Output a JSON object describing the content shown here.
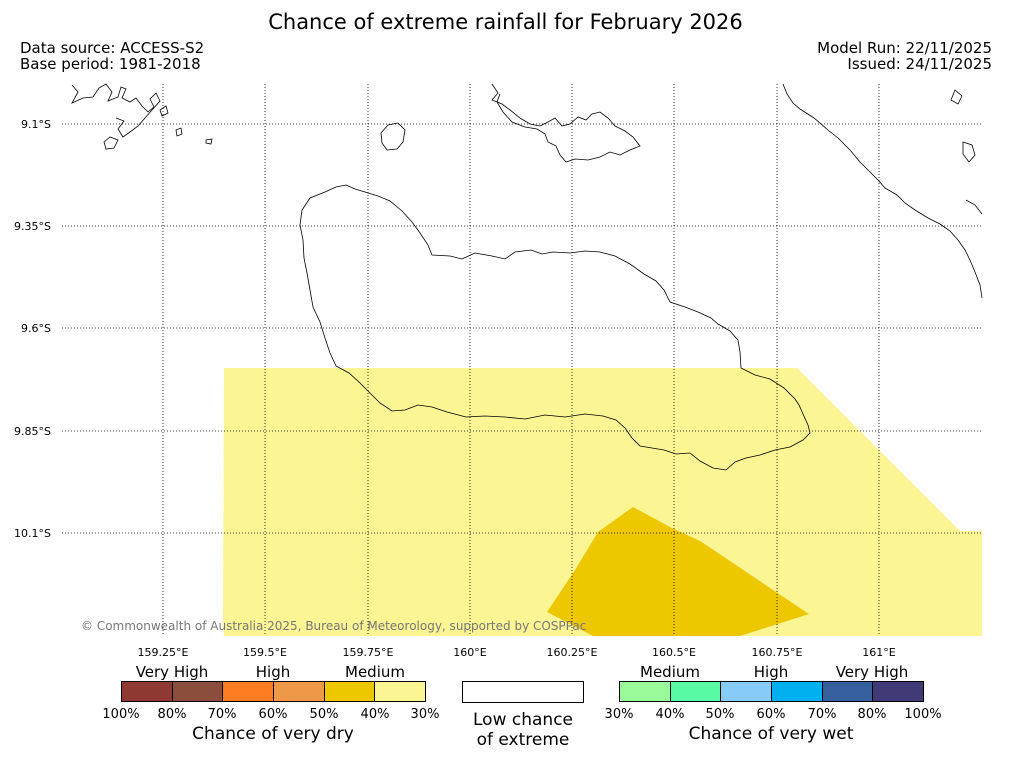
{
  "title": "Chance of extreme rainfall for February 2026",
  "header": {
    "data_source": "Data source: ACCESS-S2",
    "base_period": "Base period: 1981-2018",
    "model_run": "Model Run: 22/11/2025",
    "issued": "Issued: 24/11/2025"
  },
  "map": {
    "lat_labels": [
      "9.1°S",
      "9.35°S",
      "9.6°S",
      "9.85°S",
      "10.1°S"
    ],
    "lon_labels": [
      "159.25°E",
      "159.5°E",
      "159.75°E",
      "160°E",
      "160.25°E",
      "160.5°E",
      "160.75°E",
      "161°E"
    ],
    "copyright": "© Commonwealth of Australia 2025, Bureau of Meteorology, supported by COSPPac",
    "fill_colors": {
      "medium_dry": "#fbf594",
      "high_dry": "#edc700"
    }
  },
  "legend": {
    "dry": {
      "headings": [
        "Very High",
        "High",
        "Medium"
      ],
      "ticks": [
        "100%",
        "80%",
        "70%",
        "60%",
        "50%",
        "40%",
        "30%"
      ],
      "colors": [
        "#8e3a33",
        "#8b4d3c",
        "#fd7d22",
        "#ee9947",
        "#edc700",
        "#fbf594"
      ],
      "title": "Chance of very dry"
    },
    "low": {
      "line1": "Low chance",
      "line2": "of extreme"
    },
    "wet": {
      "headings": [
        "Medium",
        "High",
        "Very High"
      ],
      "ticks": [
        "30%",
        "40%",
        "50%",
        "60%",
        "70%",
        "80%",
        "100%"
      ],
      "colors": [
        "#9afa99",
        "#58fba3",
        "#87cbfb",
        "#00b0ef",
        "#36609d",
        "#403a76"
      ],
      "title": "Chance of very wet"
    }
  }
}
